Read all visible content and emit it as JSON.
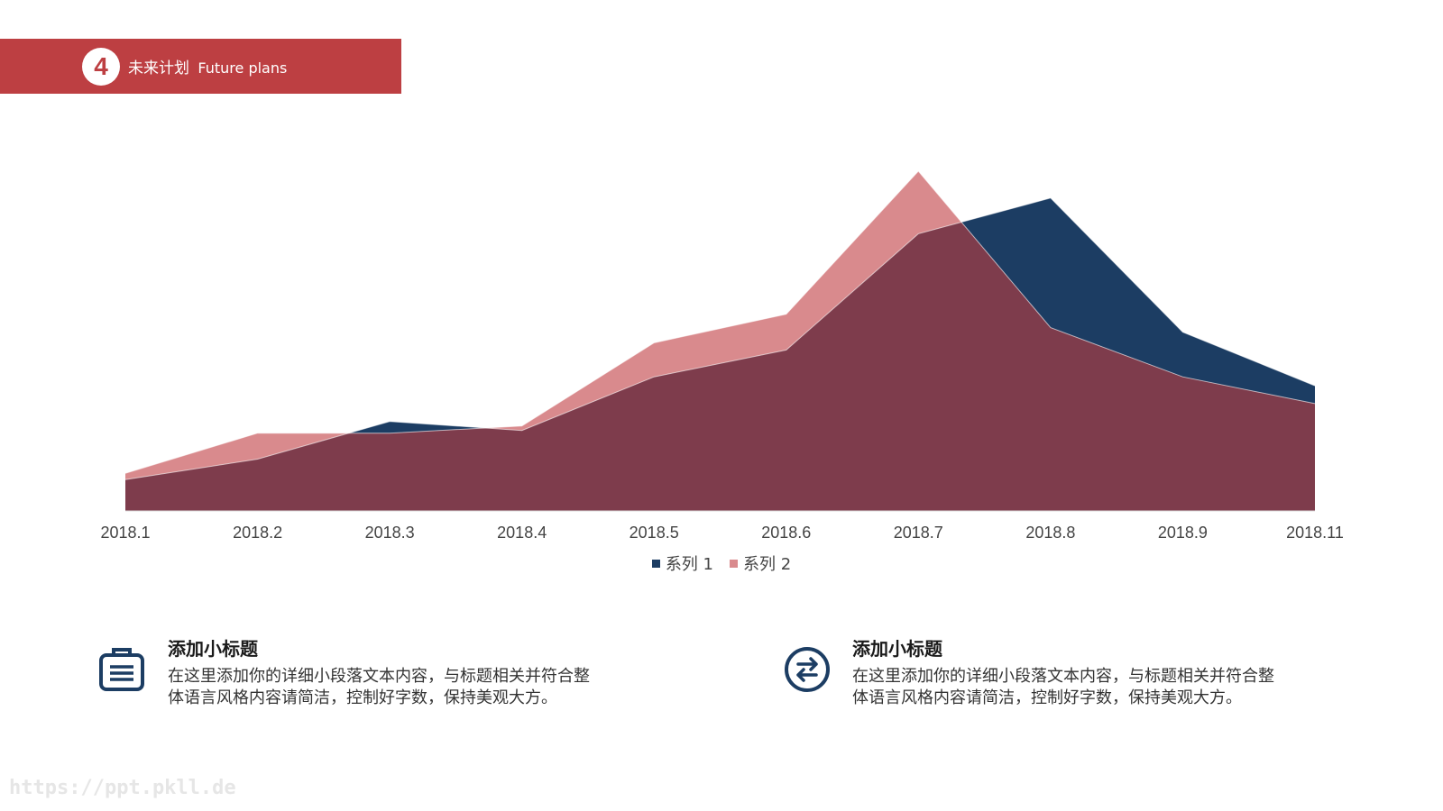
{
  "header": {
    "number": "4",
    "title_cn": "未来计划",
    "title_en": "Future plans"
  },
  "colors": {
    "banner": "#bd3f42",
    "series1": "#1c3d63",
    "series2": "#d98a8d",
    "overlap": "#7e3c4c"
  },
  "chart_data": {
    "type": "area",
    "categories": [
      "2018.1",
      "2018.2",
      "2018.3",
      "2018.4",
      "2018.5",
      "2018.6",
      "2018.7",
      "2018.8",
      "2018.9",
      "2018.11"
    ],
    "series": [
      {
        "name": "系列 1",
        "values": [
          3.5,
          5.8,
          10.0,
          9.0,
          15.0,
          18.0,
          31.0,
          35.0,
          20.0,
          14.0
        ]
      },
      {
        "name": "系列 2",
        "values": [
          4.2,
          8.7,
          8.7,
          9.5,
          18.8,
          22.0,
          38.0,
          20.5,
          15.0,
          12.0
        ]
      }
    ],
    "ylim": [
      0,
      38.0
    ],
    "grid": false,
    "legend": "bottom-center",
    "title": "",
    "xlabel": "",
    "ylabel": ""
  },
  "legend": {
    "series1": "系列 1",
    "series2": "系列 2"
  },
  "info": [
    {
      "icon": "briefcase-icon",
      "title": "添加小标题",
      "line1": "在这里添加你的详细小段落文本内容，与标题相关并符合整",
      "line2": "体语言风格内容请简洁，控制好字数，保持美观大方。"
    },
    {
      "icon": "exchange-arrows-icon",
      "title": "添加小标题",
      "line1": "在这里添加你的详细小段落文本内容，与标题相关并符合整",
      "line2": "体语言风格内容请简洁，控制好字数，保持美观大方。"
    }
  ],
  "watermark": "https://ppt.pkll.de"
}
